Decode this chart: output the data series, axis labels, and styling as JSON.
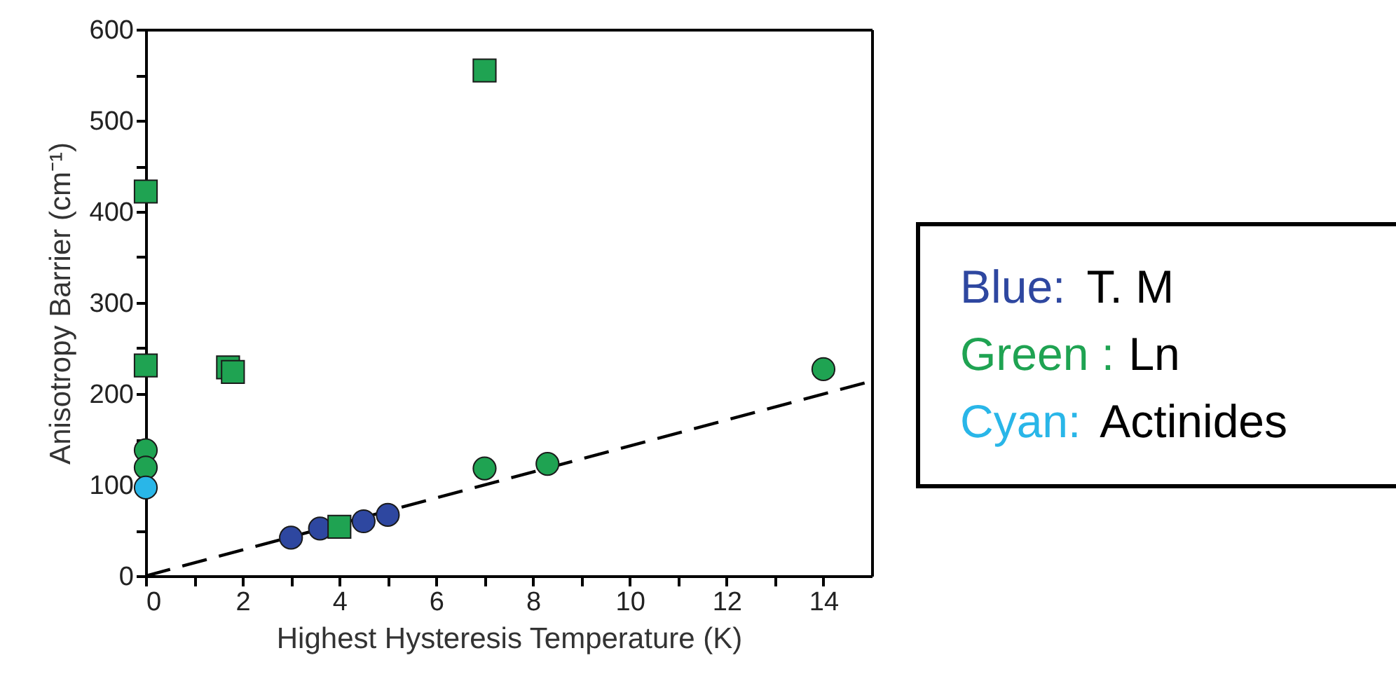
{
  "chart_data": {
    "type": "scatter",
    "xlabel": "Highest Hysteresis Temperature (K)",
    "ylabel": "Anisotropy Barrier (cm⁻¹)",
    "xlim": [
      0,
      15
    ],
    "ylim": [
      0,
      600
    ],
    "xticks": [
      0,
      {
        "value": 1,
        "label": null
      },
      2,
      {
        "value": 3,
        "label": null
      },
      4,
      {
        "value": 5,
        "label": null
      },
      6,
      {
        "value": 7,
        "label": null
      },
      8,
      {
        "value": 9,
        "label": null
      },
      10,
      {
        "value": 11,
        "label": null
      },
      12,
      {
        "value": 13,
        "label": null
      },
      14
    ],
    "yticks": [
      0,
      {
        "value": 50,
        "label": null
      },
      100,
      {
        "value": 150,
        "label": null
      },
      200,
      {
        "value": 250,
        "label": null
      },
      300,
      {
        "value": 350,
        "label": null
      },
      400,
      {
        "value": 450,
        "label": null
      },
      500,
      {
        "value": 550,
        "label": null
      },
      600
    ],
    "grid": false,
    "series": [
      {
        "type": "line",
        "color": "#000000",
        "line_style": "dashed",
        "marker": "none",
        "x": [
          0,
          15
        ],
        "values": [
          0,
          214
        ]
      },
      {
        "color": "#2e47a0",
        "marker": "circle",
        "x": [
          3,
          3.6,
          4.5,
          5
        ],
        "values": [
          42,
          52,
          60,
          67
        ]
      },
      {
        "color": "#1fa352",
        "marker": "square",
        "x": [
          0,
          0,
          1.7,
          1.8,
          4,
          7
        ],
        "values": [
          422,
          231,
          229,
          224,
          54,
          555
        ]
      },
      {
        "color": "#1fa352",
        "marker": "circle",
        "x": [
          0,
          0,
          7,
          8.3,
          14
        ],
        "values": [
          138,
          119,
          118,
          123,
          227
        ]
      },
      {
        "color": "#29b6e8",
        "marker": "circle",
        "x": [
          0
        ],
        "values": [
          97
        ]
      }
    ],
    "annotations": [
      "Blue: T. M",
      "Green : Ln",
      "Cyan: Actinides"
    ]
  }
}
